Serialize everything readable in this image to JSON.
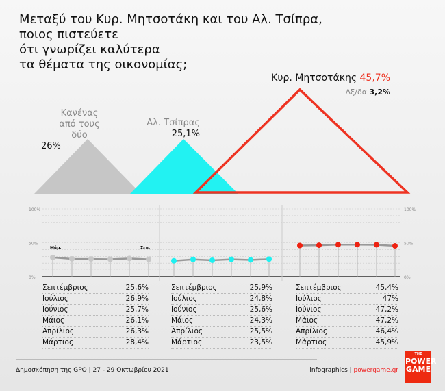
{
  "title_lines": [
    "Μεταξύ του Κυρ. Μητσοτάκη και του Αλ. Τσίπρα,",
    "ποιος πιστεύετε",
    "ότι γνωρίζει καλύτερα",
    "τα θέματα της οικονομίας;"
  ],
  "candidates": [
    {
      "name": "Κανένας από τους δύο",
      "name_lines": [
        "Κανένας",
        "από τους",
        "δύο"
      ],
      "value": "26%",
      "color": "#c8c8c8"
    },
    {
      "name": "Αλ. Τσίπρας",
      "value": "25,1%",
      "color": "#1ef0f0"
    },
    {
      "name": "Κυρ. Μητσοτάκης",
      "value": "45,7%",
      "color": "#ee3322"
    }
  ],
  "dkna": {
    "label": "Δξ/δα",
    "value": "3,2%"
  },
  "chart_data": {
    "type": "line",
    "y_ticks": [
      "100%",
      "50%",
      "0%"
    ],
    "ylim": [
      0,
      100
    ],
    "x": [
      "Μάρ.",
      "Απρ.",
      "Μάι.",
      "Ιούν.",
      "Ιούλ.",
      "Σεπ."
    ],
    "x_labels_shown": [
      "Μάρ.",
      "Σεπ."
    ],
    "series": [
      {
        "name": "Κανένας από τους δύο",
        "color": "#c8c8c8",
        "values": [
          28.4,
          26.3,
          26.1,
          25.7,
          26.9,
          25.6
        ]
      },
      {
        "name": "Αλ. Τσίπρας",
        "color": "#1ef0f0",
        "values": [
          23.5,
          25.5,
          24.3,
          25.6,
          24.8,
          25.9
        ]
      },
      {
        "name": "Κυρ. Μητσοτάκης",
        "color": "#ee2211",
        "values": [
          45.9,
          46.4,
          47.2,
          47.2,
          47,
          45.4
        ]
      }
    ]
  },
  "tables": [
    [
      [
        "Σεπτέμβριος",
        "25,6%"
      ],
      [
        "Ιούλιος",
        "26,9%"
      ],
      [
        "Ιούνιος",
        "25,7%"
      ],
      [
        "Μάιος",
        "26,1%"
      ],
      [
        "Απρίλιος",
        "26,3%"
      ],
      [
        "Μάρτιος",
        "28,4%"
      ]
    ],
    [
      [
        "Σεπτέμβριος",
        "25,9%"
      ],
      [
        "Ιούλιος",
        "24,8%"
      ],
      [
        "Ιούνιος",
        "25,6%"
      ],
      [
        "Μάιος",
        "24,3%"
      ],
      [
        "Απρίλιος",
        "25,5%"
      ],
      [
        "Μάρτιος",
        "23,5%"
      ]
    ],
    [
      [
        "Σεπτέμβριος",
        "45,4%"
      ],
      [
        "Ιούλιος",
        "47%"
      ],
      [
        "Ιούνιος",
        "47,2%"
      ],
      [
        "Μάιος",
        "47,2%"
      ],
      [
        "Απρίλιος",
        "46,4%"
      ],
      [
        "Μάρτιος",
        "45,9%"
      ]
    ]
  ],
  "footer": {
    "source": "Δημοσκόπηση της GPO | 27 - 29 Οκτωβρίου 2021",
    "credit": "infographics | ",
    "site": "powergame.gr"
  },
  "logo": {
    "top": "THE",
    "line1": "POWER",
    "line2": "GAME"
  }
}
